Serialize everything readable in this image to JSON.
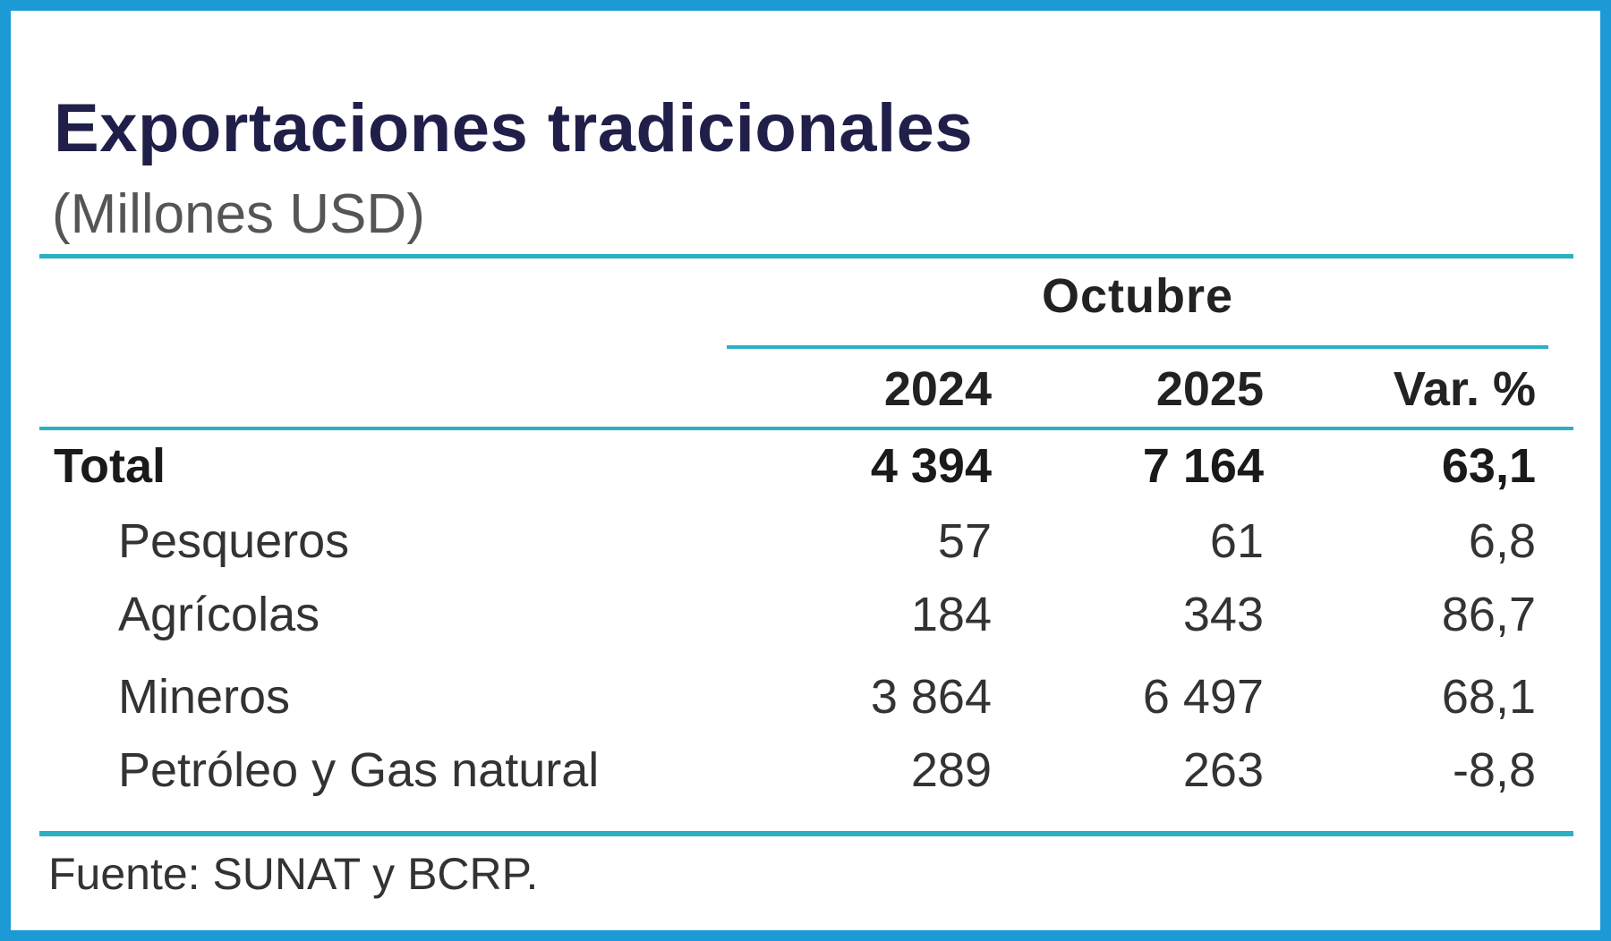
{
  "title": "Exportaciones tradicionales",
  "subtitle": "(Millones USD)",
  "table": {
    "group_label": "Octubre",
    "columns": [
      "2024",
      "2025",
      "Var. %"
    ],
    "rows": [
      {
        "label": "Total",
        "values": [
          "4 394",
          "7 164",
          "63,1"
        ]
      },
      {
        "label": "Pesqueros",
        "values": [
          "57",
          "61",
          "6,8"
        ]
      },
      {
        "label": "Agrícolas",
        "values": [
          "184",
          "343",
          "86,7"
        ]
      },
      {
        "label": "Mineros",
        "values": [
          "3 864",
          "6 497",
          "68,1"
        ]
      },
      {
        "label": "Petróleo y Gas natural",
        "values": [
          "289",
          "263",
          "-8,8"
        ]
      }
    ]
  },
  "source": "Fuente: SUNAT y BCRP.",
  "colors": {
    "border": "#1c9ad6",
    "rule": "#2bb0c4",
    "title": "#1f1f4a"
  }
}
